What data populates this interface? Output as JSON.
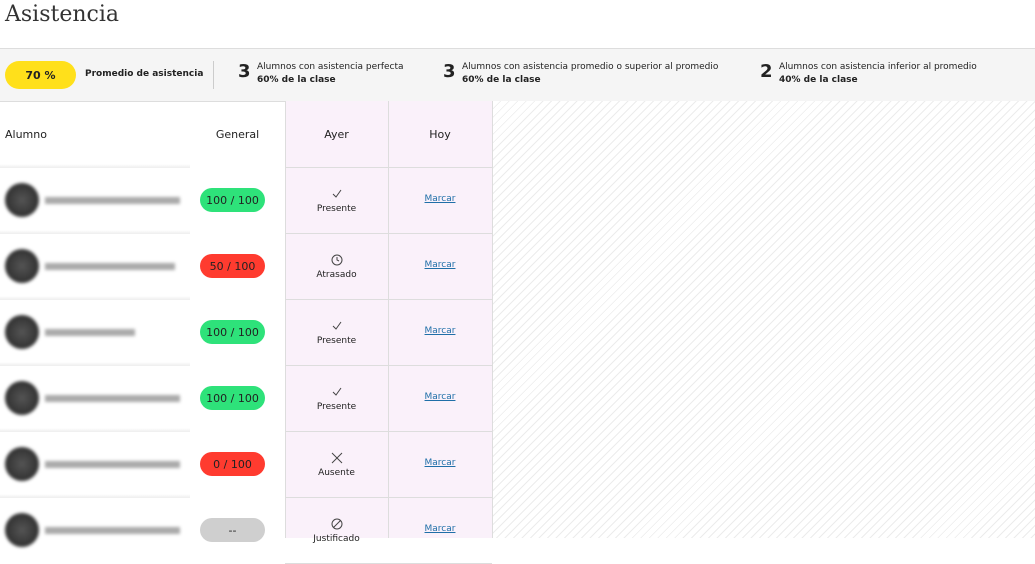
{
  "header": {
    "title": "Asistencia"
  },
  "summary": {
    "average": {
      "value": "70 %",
      "label": "Promedio de asistencia",
      "color": "#ffe01b"
    },
    "stats": [
      {
        "count": 3,
        "label": "Alumnos con asistencia perfecta",
        "share": "60% de la clase"
      },
      {
        "count": 3,
        "label": "Alumnos con asistencia promedio o superior al promedio",
        "share": "60% de la clase"
      },
      {
        "count": 2,
        "label": "Alumnos con asistencia inferior al promedio",
        "share": "40% de la clase"
      }
    ]
  },
  "table": {
    "columns": [
      "Alumno",
      "General",
      "Ayer",
      "Hoy"
    ],
    "rows": [
      {
        "general": "100 / 100",
        "color": "#2ee27a",
        "ayer": "Presente",
        "icon": "check",
        "hoy": "Marcar"
      },
      {
        "general": "50 / 100",
        "color": "#ff3b2f",
        "ayer": "Atrasado",
        "icon": "clock",
        "hoy": "Marcar"
      },
      {
        "general": "100 / 100",
        "color": "#2ee27a",
        "ayer": "Presente",
        "icon": "check",
        "hoy": "Marcar"
      },
      {
        "general": "100 / 100",
        "color": "#2ee27a",
        "ayer": "Presente",
        "icon": "check",
        "hoy": "Marcar"
      },
      {
        "general": "0 / 100",
        "color": "#ff3b2f",
        "ayer": "Ausente",
        "icon": "cross",
        "hoy": "Marcar"
      },
      {
        "general": "--",
        "color": "#cfcfcf",
        "ayer": "Justificado",
        "icon": "slash",
        "hoy": "Marcar"
      }
    ]
  }
}
